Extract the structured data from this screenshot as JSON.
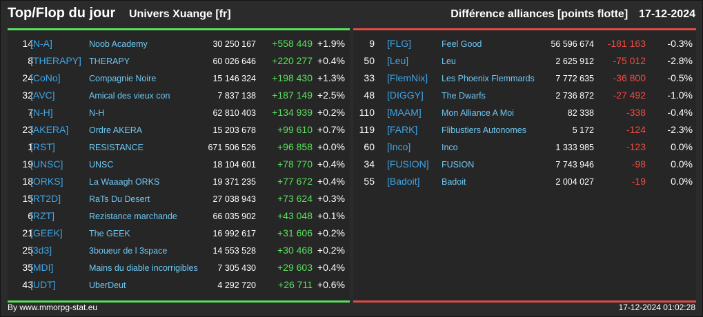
{
  "header": {
    "title": "Top/Flop du jour",
    "universe": "Univers Xuange [fr]",
    "metric": "Différence alliances [points flotte]",
    "date": "17-12-2024"
  },
  "top": [
    {
      "rank": "14",
      "tag": "[N-A]",
      "name": "Noob Academy",
      "score": "30 250 167",
      "diff": "+558 449",
      "pct": "+1.9%"
    },
    {
      "rank": "8",
      "tag": "[THERAPY]",
      "name": "THERAPY",
      "score": "60 026 646",
      "diff": "+220 277",
      "pct": "+0.4%"
    },
    {
      "rank": "24",
      "tag": "[CoNo]",
      "name": "Compagnie Noire",
      "score": "15 146 324",
      "diff": "+198 430",
      "pct": "+1.3%"
    },
    {
      "rank": "32",
      "tag": "[AVC]",
      "name": "Amical des vieux con",
      "score": "7 837 138",
      "diff": "+187 149",
      "pct": "+2.5%"
    },
    {
      "rank": "7",
      "tag": "[N-H]",
      "name": "N-H",
      "score": "62 810 403",
      "diff": "+134 939",
      "pct": "+0.2%"
    },
    {
      "rank": "23",
      "tag": "[AKERA]",
      "name": "Ordre AKERA",
      "score": "15 203 678",
      "diff": "+99 610",
      "pct": "+0.7%"
    },
    {
      "rank": "1",
      "tag": "[RST]",
      "name": "RESISTANCE",
      "score": "671 506 526",
      "diff": "+96 858",
      "pct": "+0.0%"
    },
    {
      "rank": "19",
      "tag": "[UNSC]",
      "name": "UNSC",
      "score": "18 104 601",
      "diff": "+78 770",
      "pct": "+0.4%"
    },
    {
      "rank": "18",
      "tag": "[ORKS]",
      "name": "La Waaagh ORKS",
      "score": "19 371 235",
      "diff": "+77 672",
      "pct": "+0.4%"
    },
    {
      "rank": "15",
      "tag": "[RT2D]",
      "name": "RaTs Du Desert",
      "score": "27 038 943",
      "diff": "+73 624",
      "pct": "+0.3%"
    },
    {
      "rank": "6",
      "tag": "[RZT]",
      "name": "Rezistance marchande",
      "score": "66 035 902",
      "diff": "+43 048",
      "pct": "+0.1%"
    },
    {
      "rank": "21",
      "tag": "[GEEK]",
      "name": "The GEEK",
      "score": "16 992 617",
      "diff": "+31 606",
      "pct": "+0.2%"
    },
    {
      "rank": "25",
      "tag": "[3d3]",
      "name": "3boueur de l 3space",
      "score": "14 553 528",
      "diff": "+30 468",
      "pct": "+0.2%"
    },
    {
      "rank": "35",
      "tag": "[MDI]",
      "name": "Mains du diable incorrigibles",
      "score": "7 305 430",
      "diff": "+29 603",
      "pct": "+0.4%"
    },
    {
      "rank": "43",
      "tag": "[UDT]",
      "name": "UberDeut",
      "score": "4 292 720",
      "diff": "+26 711",
      "pct": "+0.6%"
    }
  ],
  "flop": [
    {
      "rank": "9",
      "tag": "[FLG]",
      "name": "Feel Good",
      "score": "56 596 674",
      "diff": "-181 163",
      "pct": "-0.3%"
    },
    {
      "rank": "50",
      "tag": "[Leu]",
      "name": "Leu",
      "score": "2 625 912",
      "diff": "-75 012",
      "pct": "-2.8%"
    },
    {
      "rank": "33",
      "tag": "[FlemNix]",
      "name": "Les Phoenix Flemmards",
      "score": "7 772 635",
      "diff": "-36 800",
      "pct": "-0.5%"
    },
    {
      "rank": "48",
      "tag": "[DIGGY]",
      "name": "The Dwarfs",
      "score": "2 736 872",
      "diff": "-27 492",
      "pct": "-1.0%"
    },
    {
      "rank": "110",
      "tag": "[MAAM]",
      "name": "Mon Alliance A Moi",
      "score": "82 338",
      "diff": "-338",
      "pct": "-0.4%"
    },
    {
      "rank": "119",
      "tag": "[FARK]",
      "name": "Flibustiers Autonomes",
      "score": "5 172",
      "diff": "-124",
      "pct": "-2.3%"
    },
    {
      "rank": "60",
      "tag": "[Inco]",
      "name": "Inco",
      "score": "1 333 985",
      "diff": "-123",
      "pct": "0.0%"
    },
    {
      "rank": "34",
      "tag": "[FUSION]",
      "name": "FUSION",
      "score": "7 743 946",
      "diff": "-98",
      "pct": "0.0%"
    },
    {
      "rank": "55",
      "tag": "[Badoit]",
      "name": "Badoit",
      "score": "2 004 027",
      "diff": "-19",
      "pct": "0.0%"
    }
  ],
  "footer": {
    "credit": "By www.mmorpg-stat.eu",
    "timestamp": "17-12-2024 01:02:28"
  },
  "colors": {
    "top_accent": "#55e35a",
    "flop_accent": "#e24b45",
    "tag": "#3ea6e8",
    "name": "#6ec8f3"
  }
}
